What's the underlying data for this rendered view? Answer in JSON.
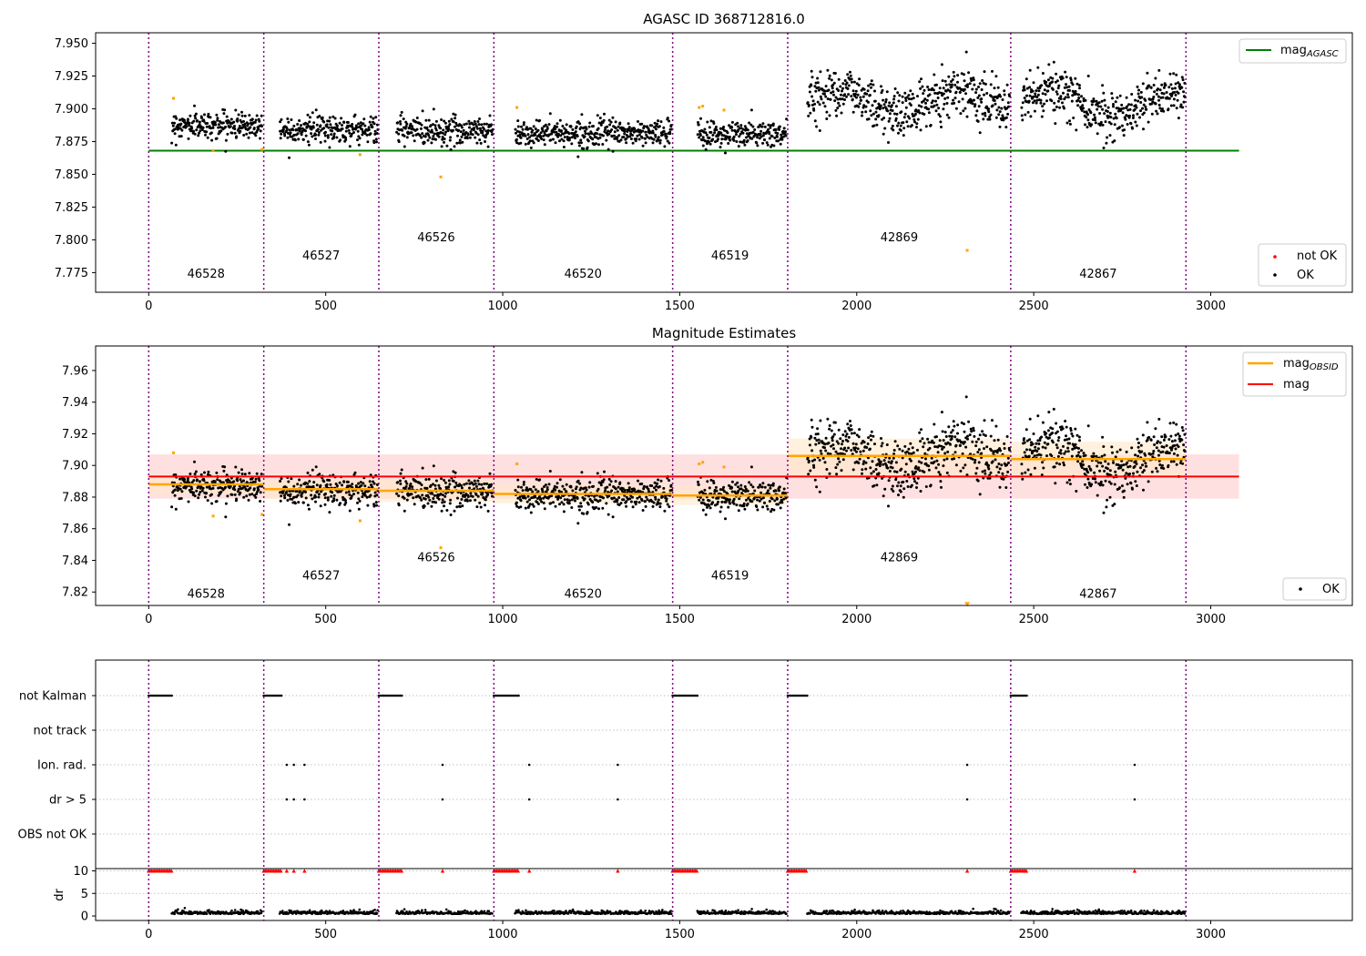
{
  "chart_data": [
    {
      "type": "scatter",
      "title": "AGASC ID 368712816.0",
      "xlim": [
        -150,
        3400
      ],
      "ylim": [
        7.76,
        7.958
      ],
      "xticks": [
        0,
        500,
        1000,
        1500,
        2000,
        2500,
        3000
      ],
      "yticks": [
        7.775,
        7.8,
        7.825,
        7.85,
        7.875,
        7.9,
        7.925,
        7.95
      ],
      "ytick_labels": [
        "7.775",
        "7.800",
        "7.825",
        "7.850",
        "7.875",
        "7.900",
        "7.925",
        "7.950"
      ],
      "boundaries": [
        0,
        325,
        650,
        975,
        1480,
        1805,
        2435,
        2930
      ],
      "obsids": [
        {
          "label": "46528",
          "x": 162,
          "y": 7.771
        },
        {
          "label": "46527",
          "x": 487,
          "y": 7.785
        },
        {
          "label": "46526",
          "x": 812,
          "y": 7.799
        },
        {
          "label": "46520",
          "x": 1227,
          "y": 7.771
        },
        {
          "label": "46519",
          "x": 1642,
          "y": 7.785
        },
        {
          "label": "42869",
          "x": 2120,
          "y": 7.799
        },
        {
          "label": "42867",
          "x": 2682,
          "y": 7.771
        }
      ],
      "mag_agasc": 7.868,
      "mag_agasc_xrange": [
        0,
        3080
      ],
      "segments": [
        {
          "x0": 65,
          "x1": 320,
          "mean": 7.8875,
          "sd": 0.0055
        },
        {
          "x0": 370,
          "x1": 648,
          "mean": 7.8845,
          "sd": 0.0058
        },
        {
          "x0": 700,
          "x1": 972,
          "mean": 7.8835,
          "sd": 0.0065
        },
        {
          "x0": 1035,
          "x1": 1478,
          "mean": 7.8815,
          "sd": 0.0052
        },
        {
          "x0": 1550,
          "x1": 1802,
          "mean": 7.8805,
          "sd": 0.006
        },
        {
          "x0": 1860,
          "x1": 2432,
          "mean": 7.906,
          "sd": 0.01
        },
        {
          "x0": 2465,
          "x1": 2928,
          "mean": 7.904,
          "sd": 0.01
        }
      ],
      "not_ok_points": [
        {
          "x": 70,
          "y": 7.908
        },
        {
          "x": 182,
          "y": 7.868
        },
        {
          "x": 320,
          "y": 7.869
        },
        {
          "x": 597,
          "y": 7.865
        },
        {
          "x": 825,
          "y": 7.848
        },
        {
          "x": 1040,
          "y": 7.901
        },
        {
          "x": 1555,
          "y": 7.901
        },
        {
          "x": 1565,
          "y": 7.902
        },
        {
          "x": 1625,
          "y": 7.899
        },
        {
          "x": 2312,
          "y": 7.792
        }
      ],
      "legend_top": [
        "mag_AGASC"
      ],
      "legend_bottom": [
        "not OK",
        "OK"
      ],
      "colors": {
        "ok": "#000000",
        "not_ok": "#ff0000",
        "not_ok_marker": "#ffa500",
        "agasc": "#008000",
        "boundary": "#800080"
      }
    },
    {
      "type": "scatter",
      "title": "Magnitude Estimates",
      "xlim": [
        -150,
        3400
      ],
      "ylim": [
        7.8115,
        7.9755
      ],
      "xticks": [
        0,
        500,
        1000,
        1500,
        2000,
        2500,
        3000
      ],
      "yticks": [
        7.82,
        7.84,
        7.86,
        7.88,
        7.9,
        7.92,
        7.94,
        7.96
      ],
      "ytick_labels": [
        "7.82",
        "7.84",
        "7.86",
        "7.88",
        "7.90",
        "7.92",
        "7.94",
        "7.96"
      ],
      "obsids": [
        {
          "label": "46528",
          "x": 162,
          "y": 7.8165
        },
        {
          "label": "46527",
          "x": 487,
          "y": 7.828
        },
        {
          "label": "46526",
          "x": 812,
          "y": 7.8395
        },
        {
          "label": "46520",
          "x": 1227,
          "y": 7.8165
        },
        {
          "label": "46519",
          "x": 1642,
          "y": 7.828
        },
        {
          "label": "42869",
          "x": 2120,
          "y": 7.8395
        },
        {
          "label": "42867",
          "x": 2682,
          "y": 7.8165
        }
      ],
      "mag": 7.893,
      "mag_band": [
        7.879,
        7.907
      ],
      "mag_xrange": [
        0,
        3080
      ],
      "mag_obsid": [
        {
          "x0": 0,
          "x1": 325,
          "y": 7.888,
          "band": [
            7.882,
            7.894
          ]
        },
        {
          "x0": 325,
          "x1": 650,
          "y": 7.885,
          "band": [
            7.879,
            7.891
          ]
        },
        {
          "x0": 650,
          "x1": 975,
          "y": 7.884,
          "band": [
            7.877,
            7.891
          ]
        },
        {
          "x0": 975,
          "x1": 1480,
          "y": 7.882,
          "band": [
            7.876,
            7.888
          ]
        },
        {
          "x0": 1480,
          "x1": 1805,
          "y": 7.881,
          "band": [
            7.875,
            7.887
          ]
        },
        {
          "x0": 1805,
          "x1": 2435,
          "y": 7.906,
          "band": [
            7.894,
            7.917
          ]
        },
        {
          "x0": 2435,
          "x1": 2930,
          "y": 7.904,
          "band": [
            7.893,
            7.915
          ]
        }
      ],
      "clipped_marker": {
        "x": 2312,
        "y": 7.8125
      },
      "legend_top": [
        "mag_OBSID",
        "mag"
      ],
      "legend_bottom": [
        "OK"
      ],
      "colors": {
        "ok": "#000000",
        "mag": "#ff0000",
        "mag_obsid": "#ffa500",
        "mag_band": "#ffcccc",
        "obsid_band": "#ffe8c8"
      }
    },
    {
      "type": "scatter",
      "title": "",
      "xlim": [
        -150,
        3400
      ],
      "xticks": [
        0,
        500,
        1000,
        1500,
        2000,
        2500,
        3000
      ],
      "flag_rows": [
        "not Kalman",
        "not track",
        "Ion. rad.",
        "dr > 5",
        "OBS not OK"
      ],
      "not_kalman_ranges": [
        [
          0,
          65
        ],
        [
          325,
          375
        ],
        [
          650,
          715
        ],
        [
          975,
          1045
        ],
        [
          1480,
          1550
        ],
        [
          1805,
          1860
        ],
        [
          2435,
          2480
        ]
      ],
      "ion_rad_x": [
        390,
        410,
        440,
        830,
        1075,
        1325,
        2312,
        2785
      ],
      "dr_gt5_x": [
        390,
        410,
        440,
        830,
        1075,
        1325,
        2312,
        2785
      ],
      "dr_ylabel": "dr",
      "dr_yticks": [
        0,
        5,
        10
      ],
      "dr_ylim": [
        -1,
        10.5
      ]
    }
  ],
  "legend": {
    "mag_agasc": {
      "base": "mag",
      "sub": "AGASC"
    },
    "not_ok": "not OK",
    "ok": "OK",
    "mag_obsid": {
      "base": "mag",
      "sub": "OBSID"
    },
    "mag": "mag"
  }
}
